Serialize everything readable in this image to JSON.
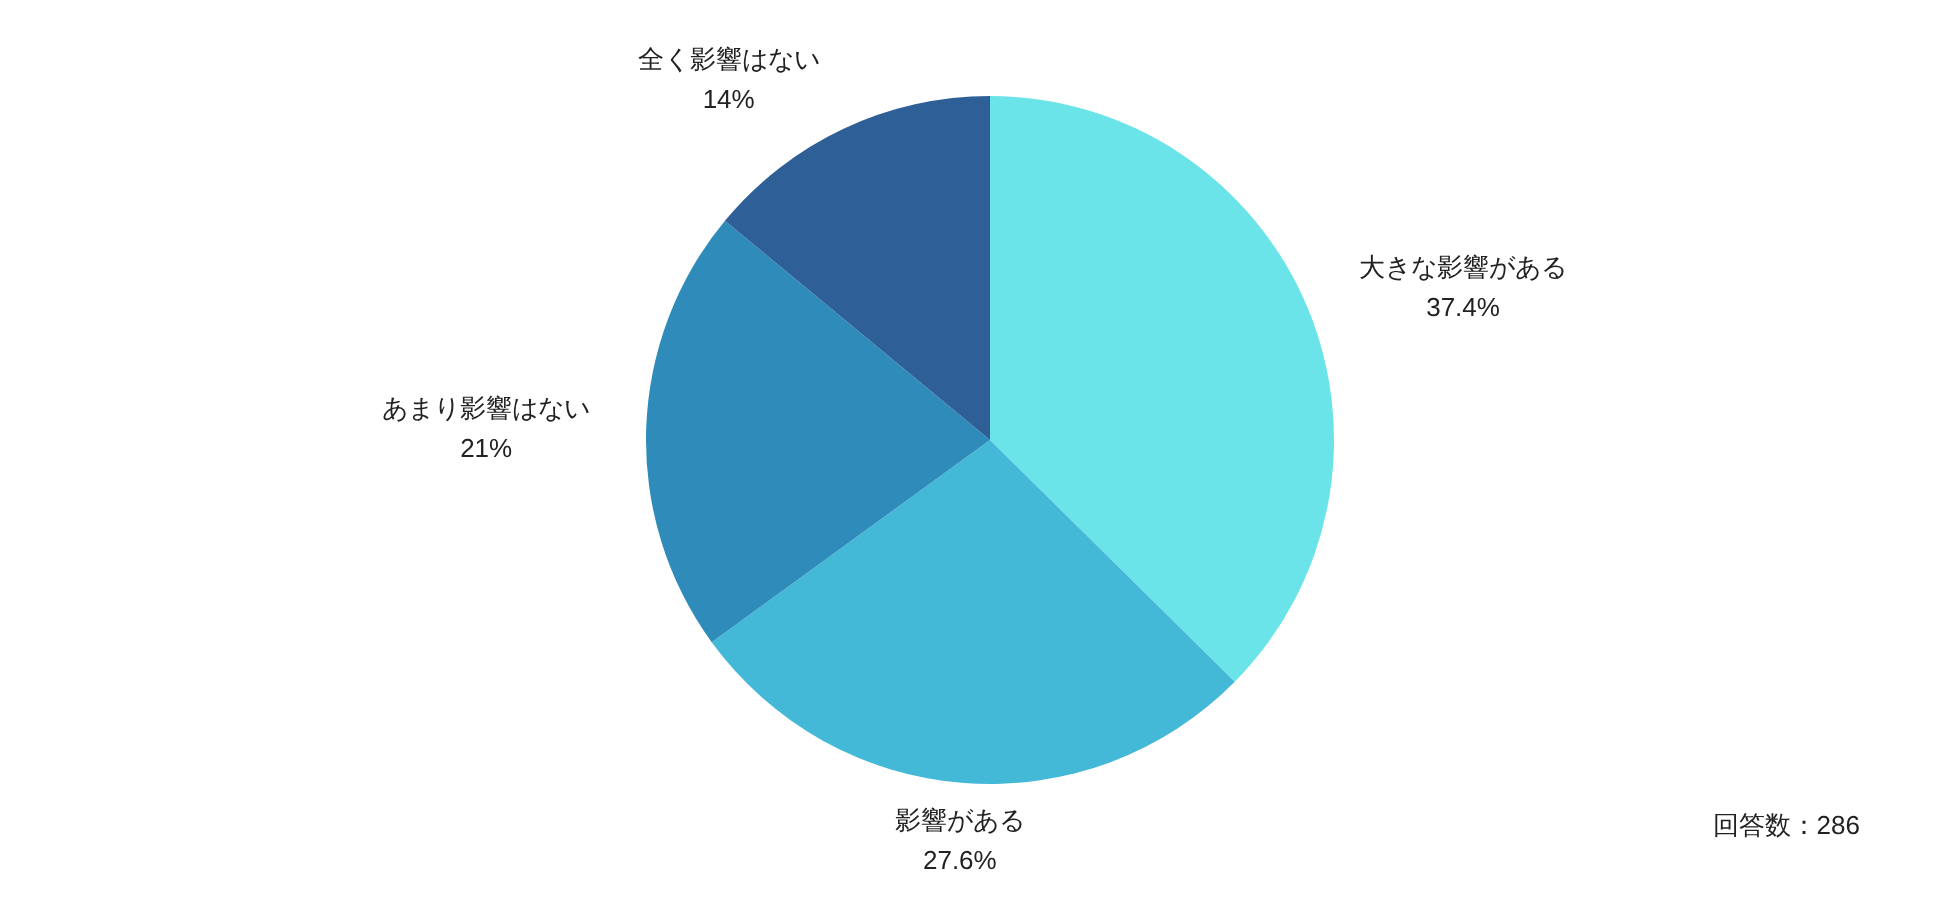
{
  "chart_data": {
    "type": "pie",
    "categories": [
      "大きな影響がある",
      "影響がある",
      "あまり影響はない",
      "全く影響はない"
    ],
    "values": [
      37.4,
      27.6,
      21,
      14
    ],
    "colors": [
      "#6ae4e8",
      "#43b8d7",
      "#2e8bba",
      "#2f5f97"
    ],
    "value_labels": [
      "37.4%",
      "27.6%",
      "21%",
      "14%"
    ],
    "annotations": [
      "回答数：286"
    ]
  }
}
